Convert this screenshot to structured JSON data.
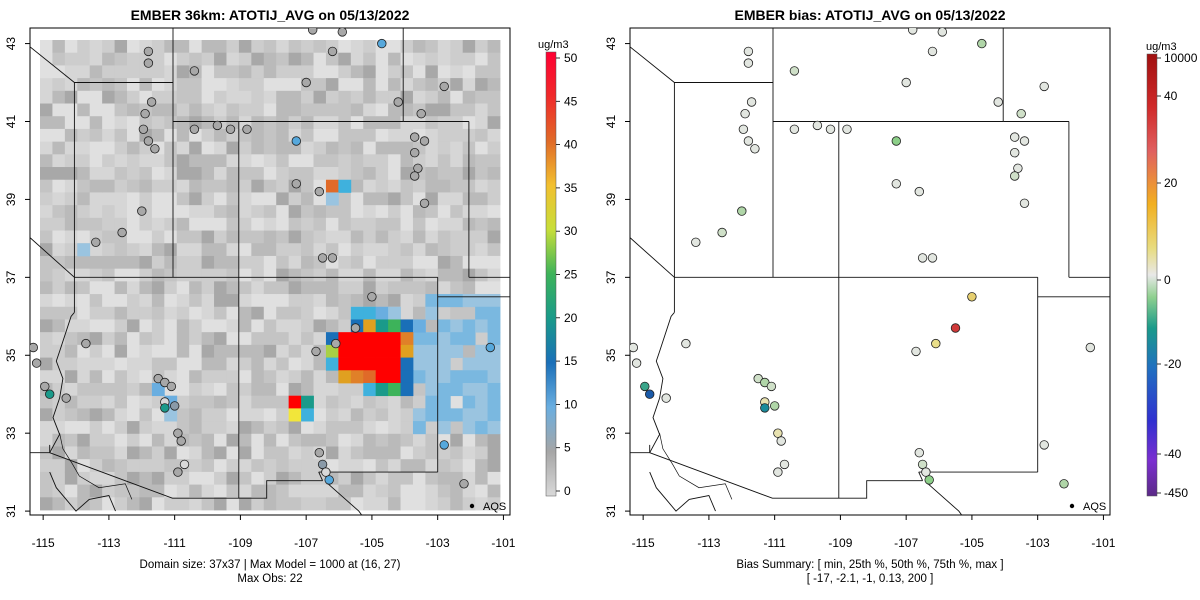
{
  "left_panel": {
    "title": "EMBER 36km: ATOTIJ_AVG on 05/13/2022",
    "colorbar_unit": "ug/m3",
    "colorbar_ticks": [
      "0",
      "5",
      "10",
      "15",
      "20",
      "25",
      "30",
      "35",
      "40",
      "45",
      "50"
    ],
    "legend_label": "AQS",
    "footer_line1": "Domain size: 37x37 | Max Model = 1000 at (16, 27)",
    "footer_line2": "Max Obs: 22"
  },
  "right_panel": {
    "title": "EMBER bias: ATOTIJ_AVG on 05/13/2022",
    "colorbar_unit": "ug/m3",
    "colorbar_ticks": [
      "-450",
      "-40",
      "-20",
      "0",
      "20",
      "40",
      "10000"
    ],
    "legend_label": "AQS",
    "footer_line1": "Bias Summary: [ min, 25th %, 50th %, 75th %, max ]",
    "footer_line2": "[ -17,   -2.1,   -1,   0.13,   200 ]"
  },
  "axes": {
    "x_ticks": [
      "-115",
      "-113",
      "-111",
      "-109",
      "-107",
      "-105",
      "-103",
      "-101"
    ],
    "y_ticks": [
      "31",
      "33",
      "35",
      "37",
      "39",
      "41",
      "43"
    ],
    "x_range": [
      -115.4,
      -100.8
    ],
    "y_range": [
      30.9,
      43.4
    ]
  },
  "colors": {
    "concentration_scale": [
      "#d9d9d9",
      "#c0c0c0",
      "#9a9a9a",
      "#56a8dc",
      "#1a6fb8",
      "#1a9a8a",
      "#3db35a",
      "#a8d046",
      "#f2e63a",
      "#f2b020",
      "#e08028",
      "#e84a20",
      "#ff1a1a",
      "#ff0033"
    ],
    "bias_scale": [
      "#5b2a86",
      "#3030d0",
      "#2060c0",
      "#1a9a8a",
      "#8fd08f",
      "#e8e8e8",
      "#e6d27a",
      "#f2b020",
      "#e06040",
      "#cc1f1f",
      "#b01818"
    ],
    "high_plume": "#ff0000"
  },
  "stations": [
    {
      "lon": -114.95,
      "lat": 34.2,
      "obs": 4,
      "bias": -8
    },
    {
      "lon": -114.8,
      "lat": 34.0,
      "obs": 22,
      "bias": -17
    },
    {
      "lon": -115.3,
      "lat": 35.2,
      "obs": 3,
      "bias": -1
    },
    {
      "lon": -115.2,
      "lat": 34.8,
      "obs": 3,
      "bias": -0.5
    },
    {
      "lon": -114.3,
      "lat": 33.9,
      "obs": 3,
      "bias": -1
    },
    {
      "lon": -113.7,
      "lat": 35.3,
      "obs": 3,
      "bias": -1
    },
    {
      "lon": -113.4,
      "lat": 37.9,
      "obs": 3,
      "bias": -1
    },
    {
      "lon": -112.6,
      "lat": 38.15,
      "obs": 3,
      "bias": -1.5
    },
    {
      "lon": -112.0,
      "lat": 38.7,
      "obs": 3,
      "bias": -2.5
    },
    {
      "lon": -111.5,
      "lat": 34.4,
      "obs": 3,
      "bias": -2
    },
    {
      "lon": -111.3,
      "lat": 34.3,
      "obs": 3,
      "bias": -2.5
    },
    {
      "lon": -111.1,
      "lat": 34.2,
      "obs": 3,
      "bias": -1.5
    },
    {
      "lon": -111.3,
      "lat": 33.8,
      "obs": 1,
      "bias": 2
    },
    {
      "lon": -111.3,
      "lat": 33.65,
      "obs": 20,
      "bias": -12
    },
    {
      "lon": -111.0,
      "lat": 33.7,
      "obs": 8,
      "bias": -3
    },
    {
      "lon": -110.9,
      "lat": 33.0,
      "obs": 3,
      "bias": 1.2
    },
    {
      "lon": -110.8,
      "lat": 32.8,
      "obs": 4,
      "bias": -0.5
    },
    {
      "lon": -110.7,
      "lat": 32.2,
      "obs": 2,
      "bias": -0.5
    },
    {
      "lon": -110.9,
      "lat": 32.0,
      "obs": 3,
      "bias": -1
    },
    {
      "lon": -111.9,
      "lat": 41.2,
      "obs": 3,
      "bias": -0.5
    },
    {
      "lon": -111.95,
      "lat": 40.8,
      "obs": 3,
      "bias": -1
    },
    {
      "lon": -111.8,
      "lat": 40.5,
      "obs": 3,
      "bias": -0.5
    },
    {
      "lon": -111.6,
      "lat": 40.3,
      "obs": 3,
      "bias": -1
    },
    {
      "lon": -111.7,
      "lat": 41.5,
      "obs": 3,
      "bias": -0.5
    },
    {
      "lon": -111.8,
      "lat": 42.8,
      "obs": 3,
      "bias": -0.5
    },
    {
      "lon": -111.8,
      "lat": 42.5,
      "obs": 3,
      "bias": -0.5
    },
    {
      "lon": -110.4,
      "lat": 40.8,
      "obs": 3,
      "bias": -1
    },
    {
      "lon": -110.4,
      "lat": 42.3,
      "obs": 3,
      "bias": -1.5
    },
    {
      "lon": -109.7,
      "lat": 40.9,
      "obs": 3,
      "bias": -0.5
    },
    {
      "lon": -109.3,
      "lat": 40.8,
      "obs": 3,
      "bias": -0.5
    },
    {
      "lon": -108.8,
      "lat": 40.8,
      "obs": 3,
      "bias": -0.5
    },
    {
      "lon": -107.3,
      "lat": 40.5,
      "obs": 10,
      "bias": -4
    },
    {
      "lon": -107.3,
      "lat": 39.4,
      "obs": 3,
      "bias": -1
    },
    {
      "lon": -106.6,
      "lat": 39.2,
      "obs": 3,
      "bias": -0.5
    },
    {
      "lon": -107.0,
      "lat": 42.0,
      "obs": 3,
      "bias": -1
    },
    {
      "lon": -106.2,
      "lat": 42.8,
      "obs": 3,
      "bias": -0.5
    },
    {
      "lon": -105.9,
      "lat": 43.3,
      "obs": 3,
      "bias": -1
    },
    {
      "lon": -104.7,
      "lat": 43.0,
      "obs": 11,
      "bias": -2.5
    },
    {
      "lon": -106.8,
      "lat": 43.35,
      "obs": 3,
      "bias": -0.5
    },
    {
      "lon": -104.2,
      "lat": 41.5,
      "obs": 3,
      "bias": -1
    },
    {
      "lon": -103.5,
      "lat": 41.2,
      "obs": 3,
      "bias": -2
    },
    {
      "lon": -102.8,
      "lat": 41.9,
      "obs": 3,
      "bias": -0.5
    },
    {
      "lon": -103.7,
      "lat": 40.6,
      "obs": 3,
      "bias": -0.5
    },
    {
      "lon": -103.4,
      "lat": 40.5,
      "obs": 3,
      "bias": -1
    },
    {
      "lon": -103.7,
      "lat": 40.2,
      "obs": 3,
      "bias": -0.5
    },
    {
      "lon": -103.6,
      "lat": 39.8,
      "obs": 3,
      "bias": -1
    },
    {
      "lon": -103.7,
      "lat": 39.6,
      "obs": 3,
      "bias": -2
    },
    {
      "lon": -103.4,
      "lat": 38.9,
      "obs": 3,
      "bias": -0.5
    },
    {
      "lon": -106.5,
      "lat": 37.5,
      "obs": 3,
      "bias": -0.5
    },
    {
      "lon": -106.2,
      "lat": 37.5,
      "obs": 3,
      "bias": -0.5
    },
    {
      "lon": -105.0,
      "lat": 36.5,
      "obs": 3,
      "bias": 8
    },
    {
      "lon": -105.5,
      "lat": 35.7,
      "obs": 3,
      "bias": 200
    },
    {
      "lon": -106.1,
      "lat": 35.3,
      "obs": 3,
      "bias": 4
    },
    {
      "lon": -106.7,
      "lat": 35.1,
      "obs": 3,
      "bias": -1
    },
    {
      "lon": -106.6,
      "lat": 32.5,
      "obs": 3,
      "bias": -0.5
    },
    {
      "lon": -106.5,
      "lat": 32.2,
      "obs": 7,
      "bias": -2
    },
    {
      "lon": -106.4,
      "lat": 32.0,
      "obs": 2,
      "bias": -1
    },
    {
      "lon": -106.3,
      "lat": 31.8,
      "obs": 13,
      "bias": -4
    },
    {
      "lon": -102.8,
      "lat": 32.7,
      "obs": 13,
      "bias": -1
    },
    {
      "lon": -102.2,
      "lat": 31.7,
      "obs": 3,
      "bias": -3
    },
    {
      "lon": -101.4,
      "lat": 35.2,
      "obs": 13,
      "bias": -0.5
    }
  ]
}
